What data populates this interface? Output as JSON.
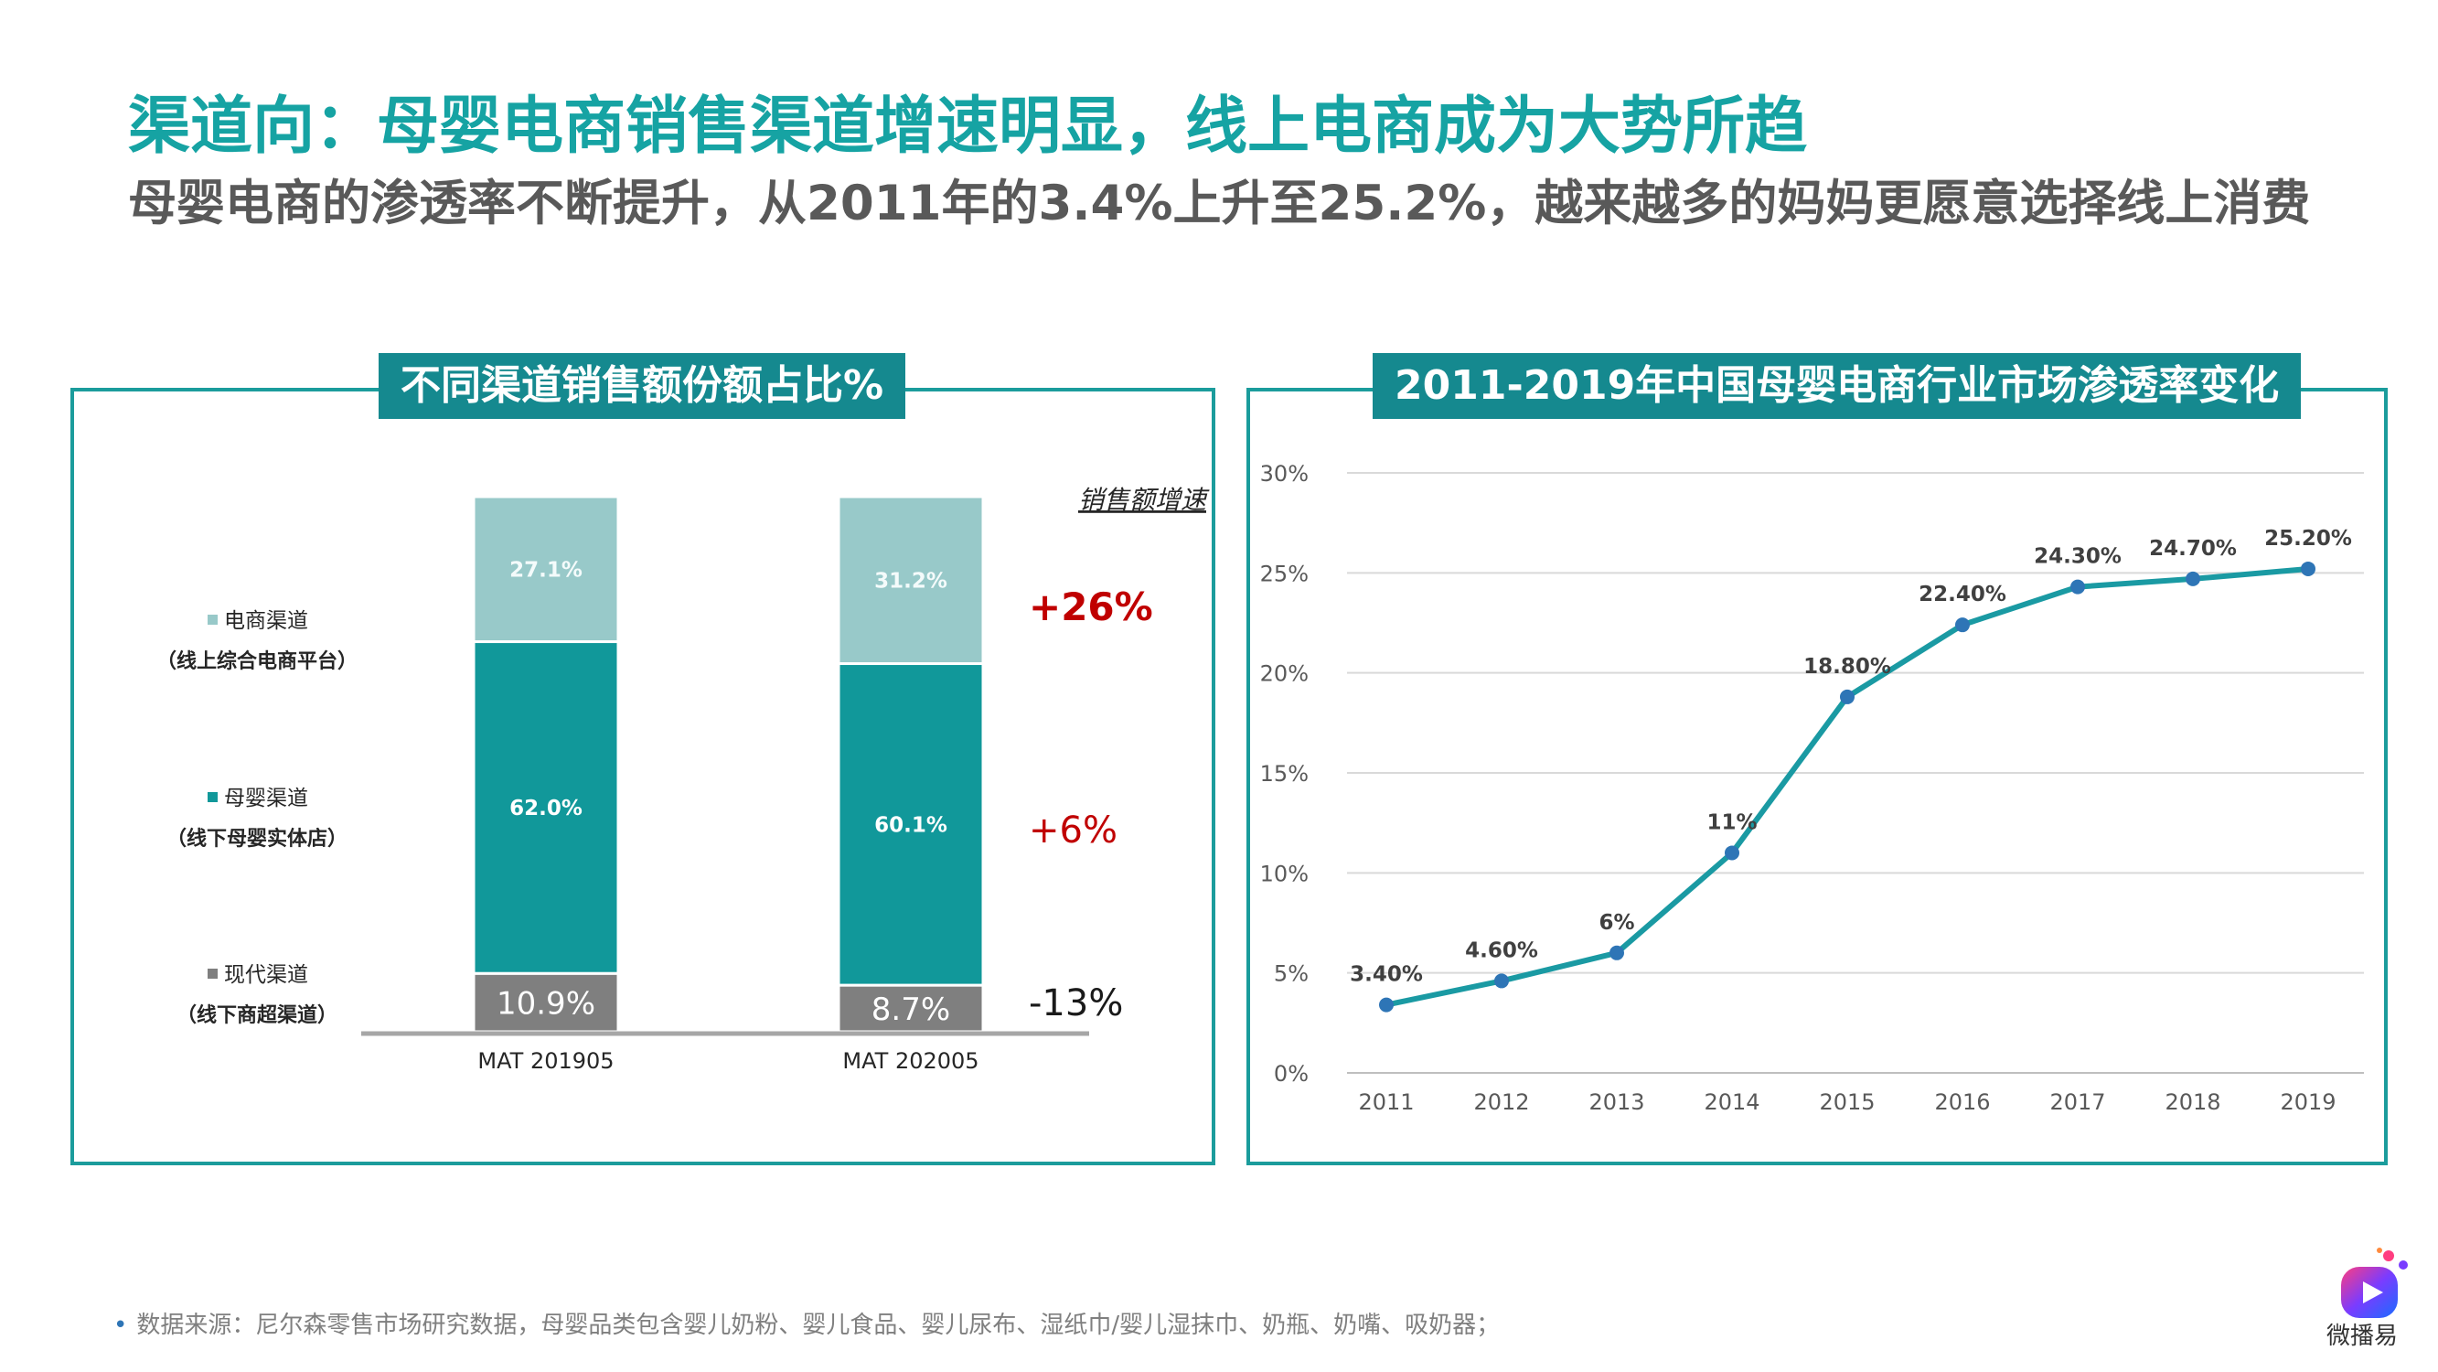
{
  "title": "渠道向：母婴电商销售渠道增速明显，线上电商成为大势所趋",
  "subtitle": "母婴电商的渗透率不断提升，从2011年的3.4%上升至25.2%，越来越多的妈妈更愿意选择线上消费",
  "colors": {
    "accent": "#16a3a3",
    "panel_border": "#1b9c9c",
    "panel_title_bg": "#15898f",
    "ecommerce": "#98c9c9",
    "maternal": "#11989a",
    "modern": "#7f7f7f",
    "positive_growth": "#c00000",
    "line": "#1a9aa3",
    "marker": "#2e75b6"
  },
  "footnote": "数据来源：尼尔森零售市场研究数据，母婴品类包含婴儿奶粉、婴儿食品、婴儿尿布、湿纸巾/婴儿湿抹巾、奶瓶、奶嘴、吸奶器；",
  "brand_label": "微播易",
  "chart_data": [
    {
      "type": "bar",
      "stacked": true,
      "title": "不同渠道销售额份额占比%",
      "categories": [
        "MAT 201905",
        "MAT 202005"
      ],
      "series": [
        {
          "name": "现代渠道",
          "sub": "（线下商超渠道）",
          "values": [
            10.9,
            8.7
          ],
          "labels": [
            "10.9%",
            "8.7%"
          ],
          "growth": "-13%"
        },
        {
          "name": "母婴渠道",
          "sub": "（线下母婴实体店）",
          "values": [
            62.0,
            60.1
          ],
          "labels": [
            "62.0%",
            "60.1%"
          ],
          "growth": "+6%"
        },
        {
          "name": "电商渠道",
          "sub": "（线上综合电商平台）",
          "values": [
            27.1,
            31.2
          ],
          "labels": [
            "27.1%",
            "31.2%"
          ],
          "growth": "+26%"
        }
      ],
      "growth_header": "销售额增速",
      "legend_position": "left",
      "ylim": [
        0,
        100
      ]
    },
    {
      "type": "line",
      "title": "2011-2019年中国母婴电商行业市场渗透率变化",
      "x": [
        "2011",
        "2012",
        "2013",
        "2014",
        "2015",
        "2016",
        "2017",
        "2018",
        "2019"
      ],
      "series": [
        {
          "values": [
            3.4,
            4.6,
            6,
            11,
            18.8,
            22.4,
            24.3,
            24.7,
            25.2
          ],
          "labels": [
            "3.40%",
            "4.60%",
            "6%",
            "11%",
            "18.80%",
            "22.40%",
            "24.30%",
            "24.70%",
            "25.20%"
          ]
        }
      ],
      "ylim": [
        0,
        30
      ],
      "yticks": [
        "0%",
        "5%",
        "10%",
        "15%",
        "20%",
        "25%",
        "30%"
      ],
      "grid": true
    }
  ]
}
